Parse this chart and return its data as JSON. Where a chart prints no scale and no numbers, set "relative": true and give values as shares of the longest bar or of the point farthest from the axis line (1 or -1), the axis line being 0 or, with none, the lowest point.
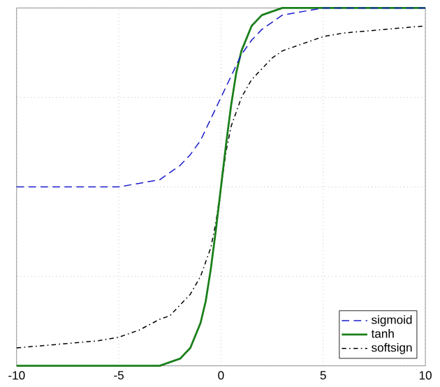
{
  "chart_data": {
    "type": "line",
    "relative": true,
    "x": [
      -10,
      -8,
      -6,
      -5,
      -4,
      -3,
      -2.5,
      -2,
      -1.5,
      -1,
      -0.75,
      -0.5,
      -0.25,
      0,
      0.25,
      0.5,
      0.75,
      1,
      1.5,
      2,
      2.5,
      3,
      4,
      5,
      6,
      8,
      10
    ],
    "series": [
      {
        "name": "sigmoid",
        "color": "#1a1acc",
        "line_style": "dashed",
        "values": [
          0.5,
          0.5,
          0.5,
          0.5,
          0.51,
          0.52,
          0.54,
          0.56,
          0.59,
          0.63,
          0.66,
          0.69,
          0.72,
          0.75,
          0.78,
          0.81,
          0.84,
          0.87,
          0.91,
          0.94,
          0.96,
          0.98,
          0.99,
          1.0,
          1.0,
          1.0,
          1.0
        ]
      },
      {
        "name": "tanh",
        "color": "#1a7f1a",
        "line_style": "solid",
        "values": [
          0,
          0,
          0,
          0,
          0,
          0,
          0.01,
          0.02,
          0.05,
          0.12,
          0.18,
          0.27,
          0.38,
          0.5,
          0.62,
          0.73,
          0.82,
          0.88,
          0.95,
          0.98,
          0.99,
          1,
          1,
          1,
          1,
          1,
          1
        ]
      },
      {
        "name": "softsign",
        "color": "#000000",
        "line_style": "dashdot",
        "values": [
          0.05,
          0.06,
          0.07,
          0.08,
          0.1,
          0.13,
          0.14,
          0.17,
          0.2,
          0.25,
          0.29,
          0.33,
          0.4,
          0.5,
          0.6,
          0.67,
          0.71,
          0.75,
          0.8,
          0.83,
          0.86,
          0.88,
          0.9,
          0.92,
          0.93,
          0.94,
          0.95
        ]
      }
    ],
    "xlim": [
      -10,
      10
    ],
    "xticks": [
      -10,
      -5,
      0,
      5,
      10
    ],
    "grid": true,
    "legend": "bottom right",
    "marker": "none"
  }
}
